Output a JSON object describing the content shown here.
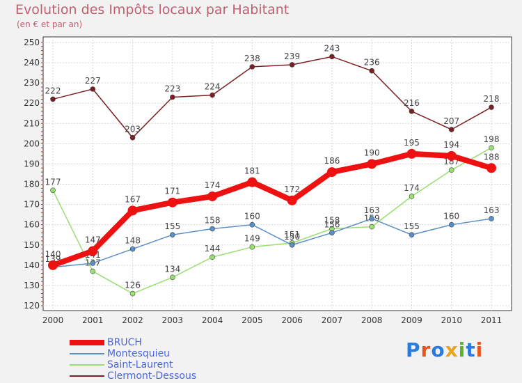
{
  "chart_data": {
    "type": "line",
    "title": "Evolution des Impôts locaux par Habitant",
    "subtitle": "(en € et par an)",
    "xlabel": "",
    "ylabel": "",
    "categories": [
      "2000",
      "2001",
      "2002",
      "2003",
      "2004",
      "2005",
      "2006",
      "2007",
      "2008",
      "2009",
      "2010",
      "2011"
    ],
    "ylim": [
      120,
      250
    ],
    "yticks": [
      120,
      130,
      140,
      150,
      160,
      170,
      180,
      190,
      200,
      210,
      220,
      230,
      240,
      250
    ],
    "grid": true,
    "series": [
      {
        "name": "Clermont-Dessous",
        "color": "#7a1f24",
        "values": [
          222,
          227,
          203,
          223,
          224,
          238,
          239,
          243,
          236,
          216,
          207,
          218
        ],
        "labels": [
          "222",
          "227",
          "203",
          "223",
          "224",
          "238",
          "239",
          "243",
          "236",
          "216",
          "207",
          "218"
        ]
      },
      {
        "name": "Saint-Laurent",
        "color": "#98e070",
        "values": [
          177,
          137,
          126,
          134,
          144,
          149,
          151,
          158,
          159,
          174,
          187,
          198
        ],
        "labels": [
          "177",
          "137",
          "126",
          "134",
          "144",
          "149",
          "151",
          "158",
          "159",
          "174",
          "187",
          "198"
        ]
      },
      {
        "name": "Montesquieu",
        "color": "#5a8fc8",
        "values": [
          139,
          141,
          148,
          155,
          158,
          160,
          150,
          156,
          163,
          155,
          160,
          163
        ],
        "labels": [
          "139",
          "141",
          "148",
          "155",
          "158",
          "160",
          "150",
          "156",
          "163",
          "155",
          "160",
          "163"
        ]
      },
      {
        "name": "BRUCH",
        "color": "#ee1111",
        "values": [
          140,
          147,
          167,
          171,
          174,
          181,
          172,
          186,
          190,
          195,
          194,
          188
        ],
        "labels": [
          "140",
          "147",
          "167",
          "171",
          "174",
          "181",
          "172",
          "186",
          "190",
          "195",
          "194",
          "188"
        ]
      }
    ],
    "legend": [
      "BRUCH",
      "Montesquieu",
      "Saint-Laurent",
      "Clermont-Dessous"
    ]
  },
  "brand": {
    "letters": [
      "P",
      "r",
      "o",
      "x",
      "i",
      "t",
      "i"
    ],
    "colors": [
      "#2a7ae0",
      "#e8541e",
      "#2a7ae0",
      "#e8a41e",
      "#5ab52a",
      "#2a7ae0",
      "#e8541e"
    ]
  }
}
